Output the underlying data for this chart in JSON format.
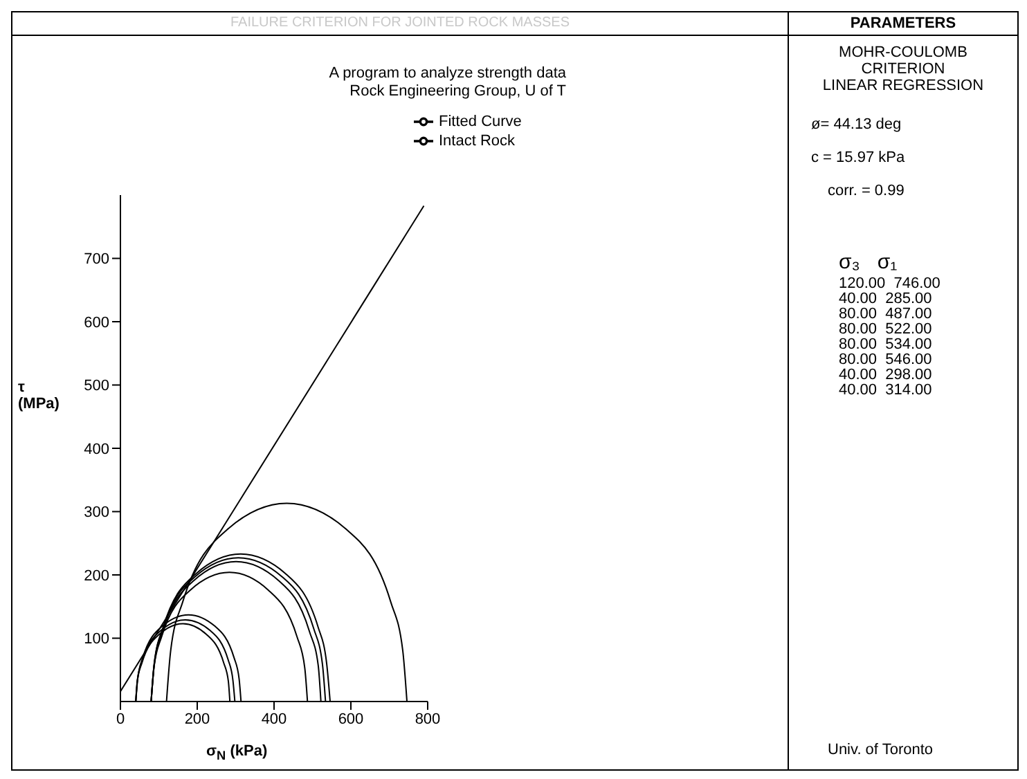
{
  "chart_data": {
    "type": "line",
    "title": "FAILURE CRITERION FOR JOINTED ROCK MASSES",
    "xlabel": "σ$_{N}$ (kPa)",
    "ylabel": "τ (MPa)",
    "xlim": [
      0,
      800
    ],
    "xticks": [
      0,
      200,
      400,
      600,
      800
    ],
    "ylim": [
      0,
      800
    ],
    "yticks": [
      100,
      200,
      300,
      400,
      500,
      600,
      700
    ],
    "legend": "top right",
    "marker": "none",
    "line_style": "solid",
    "series": [
      {
        "name": "Intact Rock",
        "color": "#000000",
        "x": [
          120,
          131,
          162,
          277,
          433,
          590,
          704,
          735,
          746
        ],
        "values": [
          0,
          81,
          157,
          271,
          313,
          271,
          157,
          81,
          0
        ]
      },
      {
        "color": "#000000",
        "x": [
          40,
          44,
          56,
          101,
          163,
          224,
          269,
          281,
          285
        ],
        "values": [
          0,
          32,
          61,
          106,
          123,
          106,
          61,
          32,
          0
        ]
      },
      {
        "color": "#000000",
        "x": [
          80,
          87,
          107,
          182,
          284,
          385,
          460,
          480,
          487
        ],
        "values": [
          0,
          53,
          102,
          176,
          204,
          176,
          102,
          53,
          0
        ]
      },
      {
        "color": "#000000",
        "x": [
          80,
          88,
          110,
          191,
          301,
          412,
          492,
          515,
          522
        ],
        "values": [
          0,
          57,
          111,
          191,
          221,
          191,
          111,
          57,
          0
        ]
      },
      {
        "color": "#000000",
        "x": [
          80,
          88,
          110,
          194,
          307,
          421,
          504,
          526,
          534
        ],
        "values": [
          0,
          59,
          114,
          197,
          227,
          197,
          114,
          59,
          0
        ]
      },
      {
        "color": "#000000",
        "x": [
          80,
          88,
          111,
          197,
          313,
          430,
          515,
          537,
          546
        ],
        "values": [
          0,
          60,
          117,
          202,
          233,
          202,
          117,
          60,
          0
        ]
      },
      {
        "color": "#000000",
        "x": [
          40,
          44,
          57,
          105,
          169,
          234,
          281,
          293,
          298
        ],
        "values": [
          0,
          33,
          65,
          112,
          129,
          112,
          65,
          33,
          0
        ]
      },
      {
        "color": "#000000",
        "x": [
          40,
          45,
          58,
          109,
          177,
          246,
          296,
          309,
          314
        ],
        "values": [
          0,
          36,
          69,
          119,
          137,
          119,
          69,
          36,
          0
        ]
      },
      {
        "name": "Fitted Curve",
        "color": "#000000",
        "x": [
          0,
          790
        ],
        "values": [
          16,
          783
        ]
      }
    ],
    "annotations": [
      "A program to analyze strength data",
      "Rock Engineering Group, U of T",
      "PARAMETERS",
      "MOHR-COULOMB",
      "CRITERION",
      "LINEAR REGRESSION",
      "ø= 44.13 deg",
      "c  = 15.97 kPa",
      "corr. = 0.99",
      "σ₃   σ₁",
      "120.00  746.00",
      "40.00  285.00",
      "80.00  487.00",
      "80.00  522.00",
      "80.00  534.00",
      "80.00  546.00",
      "40.00  298.00",
      "40.00  314.00",
      "Univ. of Toronto"
    ]
  }
}
